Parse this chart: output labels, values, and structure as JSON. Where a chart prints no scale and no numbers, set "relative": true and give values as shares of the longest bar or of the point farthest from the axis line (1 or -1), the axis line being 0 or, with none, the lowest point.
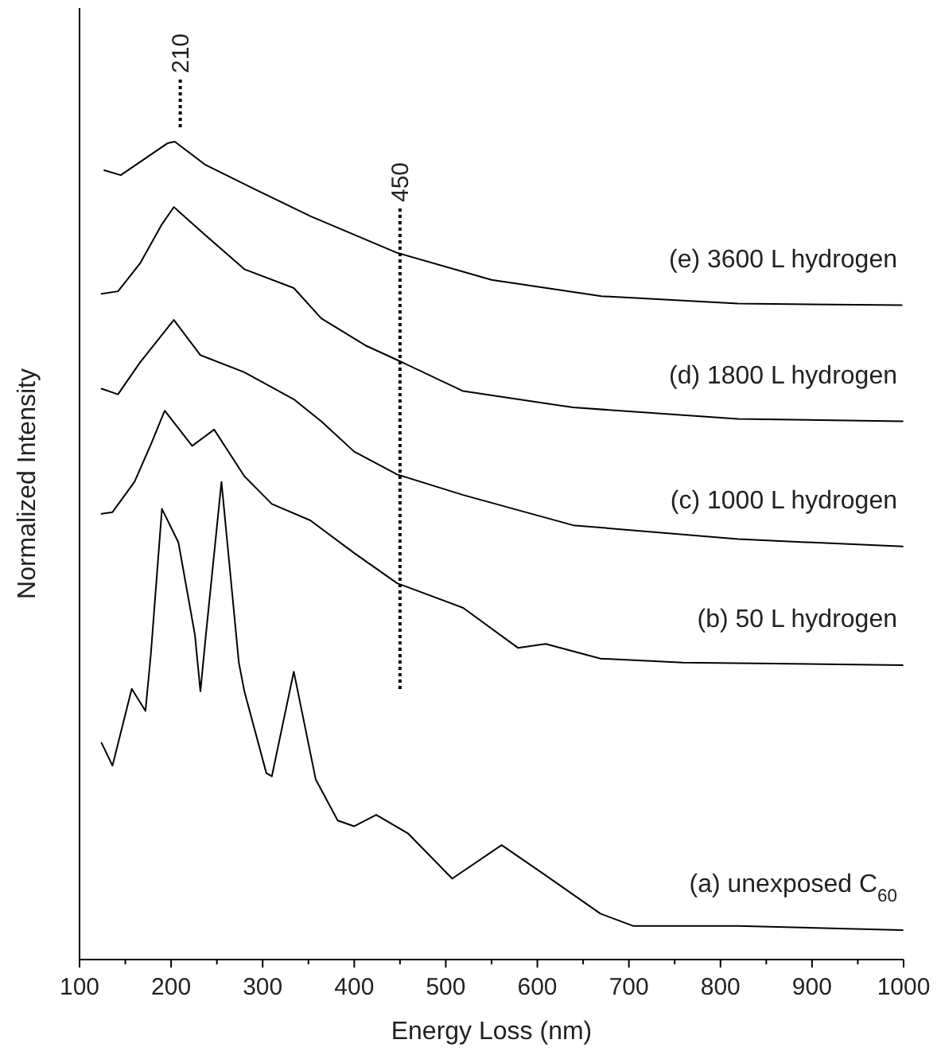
{
  "chart_data": {
    "type": "line",
    "relative": true,
    "xlabel": "Energy Loss (nm)",
    "ylabel": "Normalized Intensity",
    "xlim": [
      100,
      1000
    ],
    "xticks": [
      100,
      {
        "value": 150,
        "label": null
      },
      200,
      {
        "value": 250,
        "label": null
      },
      300,
      {
        "value": 350,
        "label": null
      },
      400,
      {
        "value": 450,
        "label": null
      },
      500,
      {
        "value": 550,
        "label": null
      },
      600,
      {
        "value": 650,
        "label": null
      },
      700,
      {
        "value": 750,
        "label": null
      },
      800,
      {
        "value": 850,
        "label": null
      },
      900,
      {
        "value": 950,
        "label": null
      },
      1000
    ],
    "tick_labels": "x",
    "grid": false,
    "legend": false,
    "marker": "none",
    "line_style": "solid",
    "ref_lines": [
      {
        "axis": "x",
        "value": 210,
        "label": "210",
        "line_style": "dotted"
      },
      {
        "axis": "x",
        "value": 450,
        "label": "450",
        "line_style": "dotted"
      }
    ],
    "series": [
      {
        "name": "(e) 3600 L hydrogen",
        "color": "#000000",
        "x": [
          127,
          145,
          196,
          204,
          237,
          291,
          352,
          447,
          550,
          670,
          819,
          998
        ],
        "values": [
          0.965,
          0.959,
          0.998,
          1.0,
          0.972,
          0.942,
          0.909,
          0.864,
          0.831,
          0.811,
          0.802,
          0.8
        ]
      },
      {
        "name": "(d) 1800 L hydrogen",
        "color": "#000000",
        "x": [
          124,
          142,
          166,
          190,
          203,
          232,
          280,
          334,
          364,
          412,
          447,
          519,
          639,
          819,
          999
        ],
        "values": [
          0.814,
          0.817,
          0.851,
          0.899,
          0.92,
          0.891,
          0.844,
          0.821,
          0.784,
          0.751,
          0.733,
          0.695,
          0.675,
          0.661,
          0.658
        ]
      },
      {
        "name": "(c) 1000 L hydrogen",
        "color": "#000000",
        "x": [
          124,
          142,
          166,
          203,
          232,
          280,
          334,
          364,
          400,
          447,
          519,
          639,
          819,
          999
        ],
        "values": [
          0.698,
          0.691,
          0.73,
          0.782,
          0.739,
          0.718,
          0.685,
          0.658,
          0.621,
          0.593,
          0.568,
          0.531,
          0.514,
          0.505
        ]
      },
      {
        "name": "(b) 50 L hydrogen",
        "color": "#000000",
        "x": [
          124,
          136,
          160,
          178,
          193,
          223,
          247,
          280,
          310,
          352,
          400,
          447,
          519,
          579,
          609,
          669,
          759,
          999
        ],
        "values": [
          0.545,
          0.547,
          0.584,
          0.63,
          0.671,
          0.628,
          0.648,
          0.591,
          0.557,
          0.537,
          0.497,
          0.46,
          0.43,
          0.381,
          0.386,
          0.368,
          0.363,
          0.36
        ]
      },
      {
        "name": "(a) unexposed C$_{60}$",
        "color": "#000000",
        "x": [
          124,
          136,
          157,
          172,
          178,
          190,
          208,
          226,
          232,
          238,
          255,
          274,
          280,
          304,
          310,
          334,
          358,
          382,
          400,
          424,
          459,
          507,
          561,
          609,
          669,
          705,
          819,
          999
        ],
        "values": [
          0.265,
          0.237,
          0.331,
          0.304,
          0.375,
          0.551,
          0.51,
          0.397,
          0.328,
          0.397,
          0.584,
          0.363,
          0.328,
          0.228,
          0.224,
          0.352,
          0.22,
          0.17,
          0.163,
          0.177,
          0.154,
          0.099,
          0.14,
          0.103,
          0.056,
          0.041,
          0.041,
          0.036
        ]
      }
    ]
  }
}
